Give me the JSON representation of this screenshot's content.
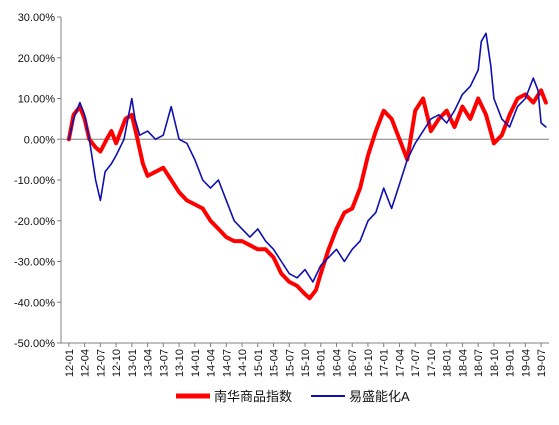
{
  "chart_data": {
    "type": "line",
    "title": "",
    "xlabel": "",
    "ylabel": "",
    "ylim": [
      -0.5,
      0.3
    ],
    "y_ticks": [
      0.3,
      0.2,
      0.1,
      0.0,
      -0.1,
      -0.2,
      -0.3,
      -0.4,
      -0.5
    ],
    "y_tick_labels": [
      "30.00%",
      "20.00%",
      "10.00%",
      "0.00%",
      "-10.00%",
      "-20.00%",
      "-30.00%",
      "-40.00%",
      "-50.00%"
    ],
    "grid": false,
    "legend_position": "bottom",
    "x_tick_labels": [
      "12-01",
      "12-04",
      "12-07",
      "12-10",
      "13-01",
      "13-04",
      "13-07",
      "13-10",
      "14-01",
      "14-04",
      "14-07",
      "14-10",
      "15-01",
      "15-04",
      "15-07",
      "15-10",
      "16-01",
      "16-04",
      "16-07",
      "16-10",
      "17-01",
      "17-04",
      "17-07",
      "17-10",
      "18-01",
      "18-04",
      "18-07",
      "18-10",
      "19-01",
      "19-04",
      "19-07"
    ],
    "series": [
      {
        "name": "南华商品指数",
        "color": "#ff0000",
        "x": [
          0,
          0.3,
          0.7,
          1,
          1.3,
          1.7,
          2,
          2.4,
          2.7,
          3,
          3.3,
          3.6,
          4,
          4.3,
          4.7,
          5,
          5.5,
          6,
          6.5,
          7,
          7.5,
          8,
          8.5,
          9,
          9.5,
          10,
          10.5,
          11,
          11.5,
          12,
          12.5,
          13,
          13.5,
          14,
          14.5,
          15,
          15.3,
          15.7,
          16,
          16.5,
          17,
          17.5,
          18,
          18.5,
          19,
          19.5,
          20,
          20.5,
          21,
          21.5,
          22,
          22.5,
          23,
          23.5,
          24,
          24.5,
          25,
          25.5,
          26,
          26.5,
          27,
          27.5,
          28,
          28.5,
          29,
          29.5,
          30,
          30.3
        ],
        "y": [
          0.0,
          0.06,
          0.08,
          0.05,
          0.0,
          -0.02,
          -0.03,
          0.0,
          0.02,
          -0.01,
          0.02,
          0.05,
          0.06,
          0.01,
          -0.06,
          -0.09,
          -0.08,
          -0.07,
          -0.1,
          -0.13,
          -0.15,
          -0.16,
          -0.17,
          -0.2,
          -0.22,
          -0.24,
          -0.25,
          -0.25,
          -0.26,
          -0.27,
          -0.27,
          -0.29,
          -0.33,
          -0.35,
          -0.36,
          -0.38,
          -0.39,
          -0.37,
          -0.33,
          -0.27,
          -0.22,
          -0.18,
          -0.17,
          -0.12,
          -0.04,
          0.02,
          0.07,
          0.05,
          0.0,
          -0.05,
          0.07,
          0.1,
          0.02,
          0.05,
          0.07,
          0.03,
          0.08,
          0.05,
          0.1,
          0.06,
          -0.01,
          0.01,
          0.06,
          0.1,
          0.11,
          0.09,
          0.12,
          0.09
        ]
      },
      {
        "name": "易盛能化A",
        "color": "#1010b0",
        "x": [
          0,
          0.3,
          0.7,
          1,
          1.3,
          1.7,
          2,
          2.3,
          2.7,
          3,
          3.5,
          4,
          4.2,
          4.5,
          5,
          5.5,
          6,
          6.5,
          7,
          7.5,
          8,
          8.5,
          9,
          9.5,
          10,
          10.5,
          11,
          11.5,
          12,
          12.5,
          13,
          13.5,
          14,
          14.5,
          15,
          15.5,
          16,
          16.5,
          17,
          17.5,
          18,
          18.5,
          19,
          19.5,
          20,
          20.5,
          21,
          21.5,
          22,
          22.5,
          23,
          23.5,
          24,
          24.5,
          25,
          25.5,
          26,
          26.2,
          26.5,
          26.8,
          27,
          27.5,
          28,
          28.5,
          29,
          29.5,
          29.8,
          30,
          30.3
        ],
        "y": [
          0.0,
          0.05,
          0.09,
          0.06,
          0.0,
          -0.1,
          -0.15,
          -0.08,
          -0.06,
          -0.04,
          0.0,
          0.1,
          0.05,
          0.01,
          0.02,
          0.0,
          0.01,
          0.08,
          0.0,
          -0.01,
          -0.05,
          -0.1,
          -0.12,
          -0.1,
          -0.15,
          -0.2,
          -0.22,
          -0.24,
          -0.22,
          -0.25,
          -0.27,
          -0.3,
          -0.33,
          -0.34,
          -0.32,
          -0.35,
          -0.31,
          -0.29,
          -0.27,
          -0.3,
          -0.27,
          -0.25,
          -0.2,
          -0.18,
          -0.12,
          -0.17,
          -0.11,
          -0.05,
          -0.01,
          0.02,
          0.05,
          0.06,
          0.04,
          0.07,
          0.11,
          0.13,
          0.17,
          0.24,
          0.26,
          0.18,
          0.1,
          0.05,
          0.03,
          0.08,
          0.1,
          0.15,
          0.12,
          0.04,
          0.03
        ]
      }
    ]
  }
}
